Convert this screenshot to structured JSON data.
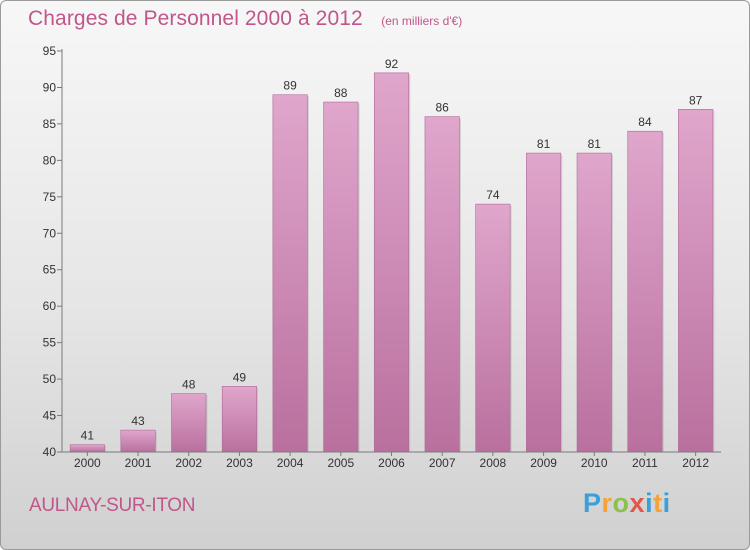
{
  "header": {
    "title": "Charges de Personnel 2000 à 2012",
    "subtitle": "(en milliers d'€)"
  },
  "footer": {
    "commune": "AULNAY-SUR-ITON",
    "brand": "Proxiti"
  },
  "colors": {
    "title": "#c0568a",
    "bar_top": "#e0a6cc",
    "bar_bottom": "#b9709e",
    "axis": "#7a7a7a"
  },
  "chart_data": {
    "type": "bar",
    "categories": [
      "2000",
      "2001",
      "2002",
      "2003",
      "2004",
      "2005",
      "2006",
      "2007",
      "2008",
      "2009",
      "2010",
      "2011",
      "2012"
    ],
    "values": [
      41,
      43,
      48,
      49,
      89,
      88,
      92,
      86,
      74,
      81,
      81,
      84,
      87
    ],
    "ylim": [
      40,
      95
    ],
    "yticks": [
      40,
      45,
      50,
      55,
      60,
      65,
      70,
      75,
      80,
      85,
      90,
      95
    ],
    "xlabel": "",
    "ylabel": "",
    "grid": false,
    "legend": "none"
  }
}
